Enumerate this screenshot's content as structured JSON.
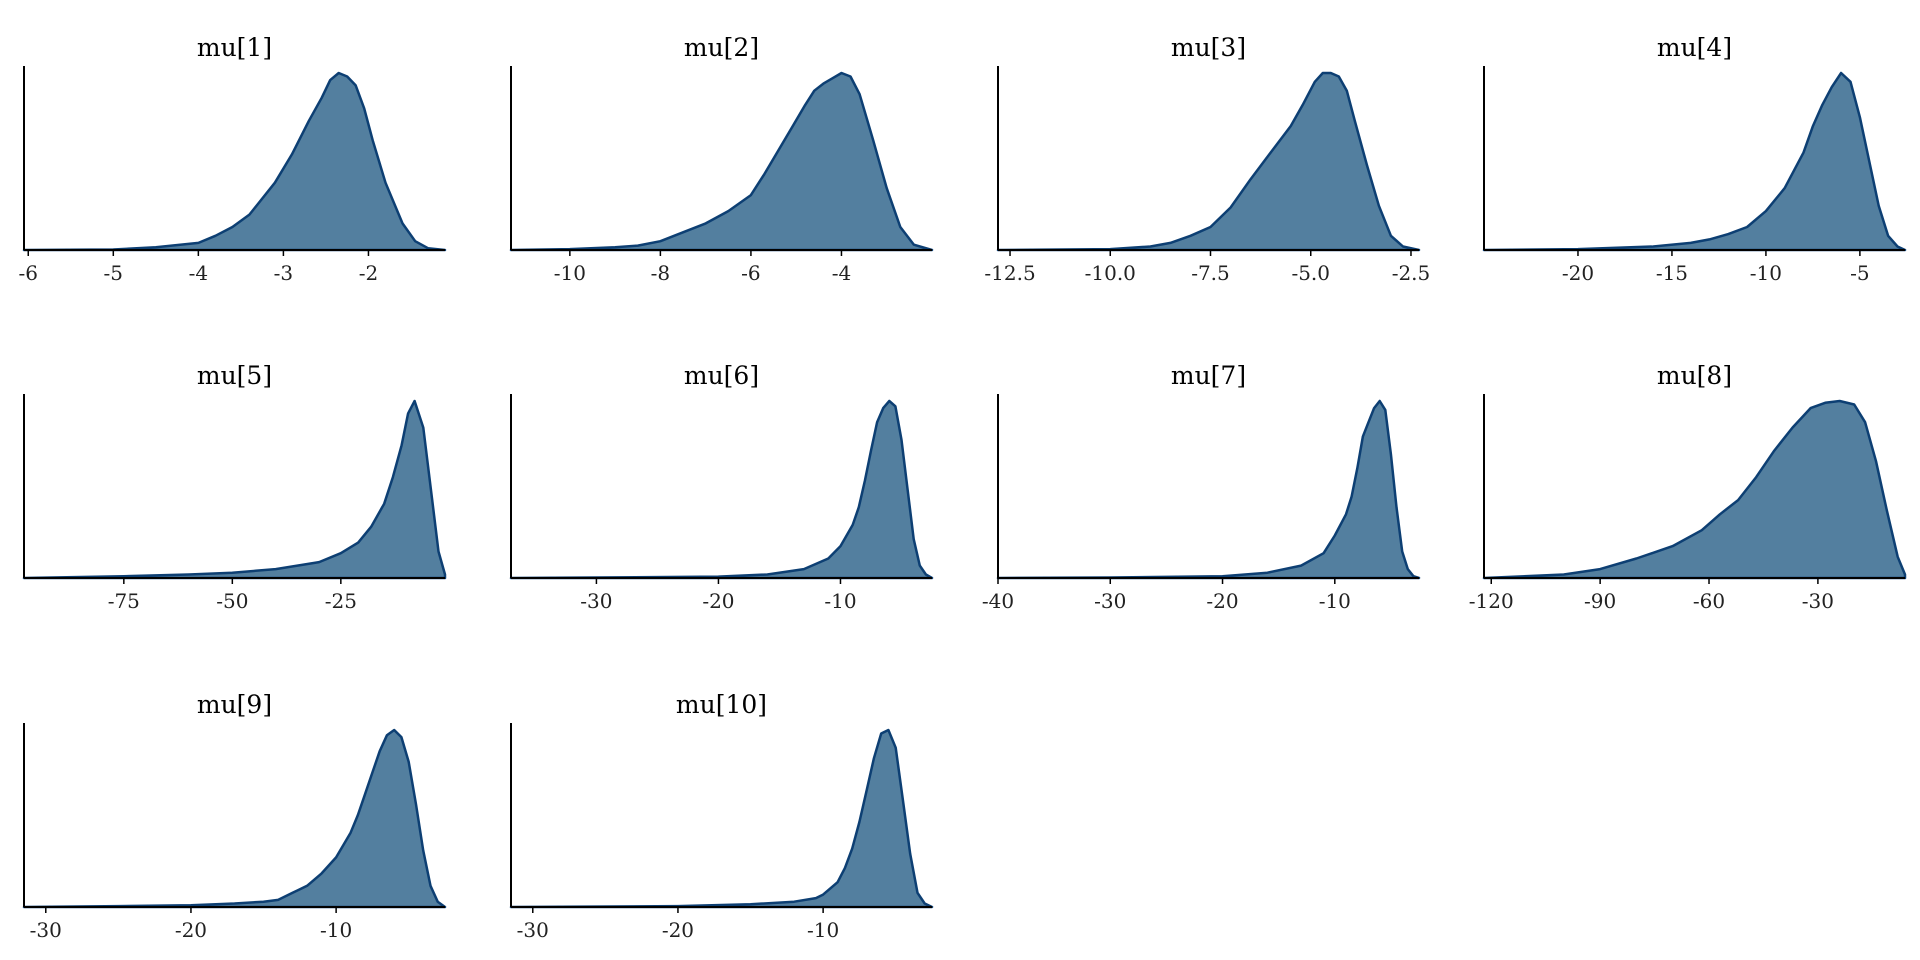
{
  "style": {
    "fill_color": "#537f9f",
    "line_color": "#0d3f73",
    "axis_color": "#000000"
  },
  "chart_data": [
    {
      "type": "area",
      "title": "mu[1]",
      "xlim": [
        -6.05,
        -1.1
      ],
      "ticks": [
        -6,
        -5,
        -4,
        -3,
        -2
      ],
      "tick_labels": [
        "-6",
        "-5",
        "-4",
        "-3",
        "-2"
      ],
      "x": [
        -6.05,
        -5,
        -4.5,
        -4,
        -3.8,
        -3.6,
        -3.4,
        -3.3,
        -3.1,
        -2.9,
        -2.7,
        -2.55,
        -2.45,
        -2.35,
        -2.25,
        -2.15,
        -2.05,
        -1.95,
        -1.8,
        -1.6,
        -1.45,
        -1.3,
        -1.1
      ],
      "y": [
        0,
        0.003,
        0.015,
        0.04,
        0.08,
        0.13,
        0.2,
        0.26,
        0.38,
        0.54,
        0.73,
        0.86,
        0.96,
        1.0,
        0.98,
        0.93,
        0.8,
        0.62,
        0.38,
        0.15,
        0.05,
        0.01,
        0
      ]
    },
    {
      "type": "area",
      "title": "mu[2]",
      "xlim": [
        -11.3,
        -2.0
      ],
      "ticks": [
        -10,
        -8,
        -6,
        -4
      ],
      "tick_labels": [
        "-10",
        "-8",
        "-6",
        "-4"
      ],
      "x": [
        -11.3,
        -10,
        -9,
        -8.5,
        -8,
        -7.5,
        -7,
        -6.5,
        -6,
        -5.7,
        -5.4,
        -5.1,
        -4.8,
        -4.6,
        -4.4,
        -4.2,
        -4.0,
        -3.8,
        -3.6,
        -3.3,
        -3.0,
        -2.7,
        -2.4,
        -2.0
      ],
      "y": [
        0,
        0.005,
        0.015,
        0.025,
        0.05,
        0.1,
        0.15,
        0.22,
        0.31,
        0.43,
        0.56,
        0.69,
        0.82,
        0.9,
        0.94,
        0.97,
        1.0,
        0.98,
        0.88,
        0.62,
        0.35,
        0.13,
        0.03,
        0
      ]
    },
    {
      "type": "area",
      "title": "mu[3]",
      "xlim": [
        -12.8,
        -2.3
      ],
      "ticks": [
        -12.5,
        -10.0,
        -7.5,
        -5.0,
        -2.5
      ],
      "tick_labels": [
        "-12.5",
        "-10.0",
        "-7.5",
        "-5.0",
        "-2.5"
      ],
      "x": [
        -12.8,
        -10,
        -9,
        -8.5,
        -8,
        -7.5,
        -7,
        -6.5,
        -6,
        -5.5,
        -5.2,
        -4.9,
        -4.7,
        -4.5,
        -4.3,
        -4.1,
        -3.9,
        -3.6,
        -3.3,
        -3.0,
        -2.7,
        -2.3
      ],
      "y": [
        0,
        0.005,
        0.02,
        0.04,
        0.08,
        0.13,
        0.24,
        0.4,
        0.55,
        0.7,
        0.82,
        0.95,
        1.0,
        1.0,
        0.98,
        0.9,
        0.73,
        0.48,
        0.25,
        0.08,
        0.02,
        0
      ]
    },
    {
      "type": "area",
      "title": "mu[4]",
      "xlim": [
        -25.0,
        -2.6
      ],
      "ticks": [
        -20,
        -15,
        -10,
        -5
      ],
      "tick_labels": [
        "-20",
        "-15",
        "-10",
        "-5"
      ],
      "x": [
        -25,
        -20,
        -16,
        -14,
        -13,
        -12,
        -11,
        -10,
        -9,
        -8,
        -7.5,
        -7,
        -6.5,
        -6,
        -5.5,
        -5,
        -4.5,
        -4,
        -3.5,
        -3,
        -2.6
      ],
      "y": [
        0,
        0.005,
        0.02,
        0.04,
        0.06,
        0.09,
        0.13,
        0.22,
        0.35,
        0.55,
        0.7,
        0.82,
        0.92,
        1.0,
        0.95,
        0.75,
        0.5,
        0.25,
        0.08,
        0.02,
        0
      ]
    },
    {
      "type": "area",
      "title": "mu[5]",
      "xlim": [
        -98.0,
        -1.0
      ],
      "ticks": [
        -75,
        -50,
        -25
      ],
      "tick_labels": [
        "-75",
        "-50",
        "-25"
      ],
      "x": [
        -98,
        -75,
        -60,
        -50,
        -40,
        -35,
        -30,
        -25,
        -21,
        -18,
        -15,
        -13,
        -11,
        -9.5,
        -8,
        -6,
        -4,
        -2.5,
        -1
      ],
      "y": [
        0,
        0.01,
        0.02,
        0.03,
        0.05,
        0.07,
        0.09,
        0.14,
        0.2,
        0.29,
        0.42,
        0.57,
        0.75,
        0.93,
        1.0,
        0.85,
        0.45,
        0.15,
        0.02
      ]
    },
    {
      "type": "area",
      "title": "mu[6]",
      "xlim": [
        -37.0,
        -2.5
      ],
      "ticks": [
        -30,
        -20,
        -10
      ],
      "tick_labels": [
        "-30",
        "-20",
        "-10"
      ],
      "x": [
        -37,
        -30,
        -20,
        -16,
        -13,
        -11,
        -10,
        -9,
        -8.5,
        -8,
        -7.5,
        -7,
        -6.5,
        -6,
        -5.5,
        -5,
        -4.5,
        -4,
        -3.5,
        -3,
        -2.5
      ],
      "y": [
        0,
        0.003,
        0.008,
        0.02,
        0.05,
        0.11,
        0.18,
        0.3,
        0.4,
        0.55,
        0.72,
        0.88,
        0.96,
        1.0,
        0.97,
        0.78,
        0.5,
        0.22,
        0.07,
        0.02,
        0
      ]
    },
    {
      "type": "area",
      "title": "mu[7]",
      "xlim": [
        -40.0,
        -2.5
      ],
      "ticks": [
        -40,
        -30,
        -20,
        -10
      ],
      "tick_labels": [
        "-40",
        "-30",
        "-20",
        "-10"
      ],
      "x": [
        -40,
        -30,
        -20,
        -16,
        -13,
        -11,
        -10,
        -9,
        -8.5,
        -8,
        -7.5,
        -7,
        -6.5,
        -6,
        -5.5,
        -5,
        -4.5,
        -4,
        -3.5,
        -3,
        -2.5
      ],
      "y": [
        0,
        0.003,
        0.01,
        0.03,
        0.07,
        0.14,
        0.24,
        0.36,
        0.46,
        0.62,
        0.8,
        0.88,
        0.96,
        1.0,
        0.95,
        0.7,
        0.4,
        0.15,
        0.05,
        0.01,
        0
      ]
    },
    {
      "type": "area",
      "title": "mu[8]",
      "xlim": [
        -122.0,
        -6.0
      ],
      "ticks": [
        -120,
        -90,
        -60,
        -30
      ],
      "tick_labels": [
        "-120",
        "-90",
        "-60",
        "-30"
      ],
      "x": [
        -122,
        -100,
        -90,
        -80,
        -70,
        -62,
        -57,
        -52,
        -47,
        -42,
        -37,
        -32,
        -28,
        -24,
        -20,
        -17,
        -14,
        -11,
        -8,
        -6
      ],
      "y": [
        0,
        0.02,
        0.05,
        0.11,
        0.18,
        0.27,
        0.36,
        0.44,
        0.57,
        0.72,
        0.85,
        0.96,
        0.99,
        1.0,
        0.98,
        0.88,
        0.66,
        0.38,
        0.12,
        0.02
      ]
    },
    {
      "type": "area",
      "title": "mu[9]",
      "xlim": [
        -31.5,
        -2.5
      ],
      "ticks": [
        -30,
        -20,
        -10
      ],
      "tick_labels": [
        "-30",
        "-20",
        "-10"
      ],
      "x": [
        -31.5,
        -25,
        -20,
        -17,
        -15,
        -14,
        -13,
        -12,
        -11,
        -10,
        -9,
        -8.5,
        -8,
        -7.5,
        -7,
        -6.5,
        -6,
        -5.5,
        -5,
        -4.5,
        -4,
        -3.5,
        -3,
        -2.5
      ],
      "y": [
        0,
        0.005,
        0.01,
        0.02,
        0.03,
        0.04,
        0.08,
        0.12,
        0.19,
        0.28,
        0.42,
        0.52,
        0.64,
        0.76,
        0.88,
        0.97,
        1.0,
        0.96,
        0.82,
        0.58,
        0.32,
        0.12,
        0.03,
        0
      ]
    },
    {
      "type": "area",
      "title": "mu[10]",
      "xlim": [
        -31.5,
        -2.5
      ],
      "ticks": [
        -30,
        -20,
        -10
      ],
      "tick_labels": [
        "-30",
        "-20",
        "-10"
      ],
      "x": [
        -31.5,
        -20,
        -15,
        -12,
        -10.5,
        -10,
        -9,
        -8.5,
        -8,
        -7.5,
        -7,
        -6.5,
        -6,
        -5.5,
        -5,
        -4.5,
        -4,
        -3.5,
        -3,
        -2.5
      ],
      "y": [
        0,
        0.005,
        0.015,
        0.03,
        0.05,
        0.07,
        0.14,
        0.22,
        0.33,
        0.48,
        0.66,
        0.84,
        0.98,
        1.0,
        0.9,
        0.6,
        0.3,
        0.08,
        0.02,
        0
      ]
    }
  ]
}
